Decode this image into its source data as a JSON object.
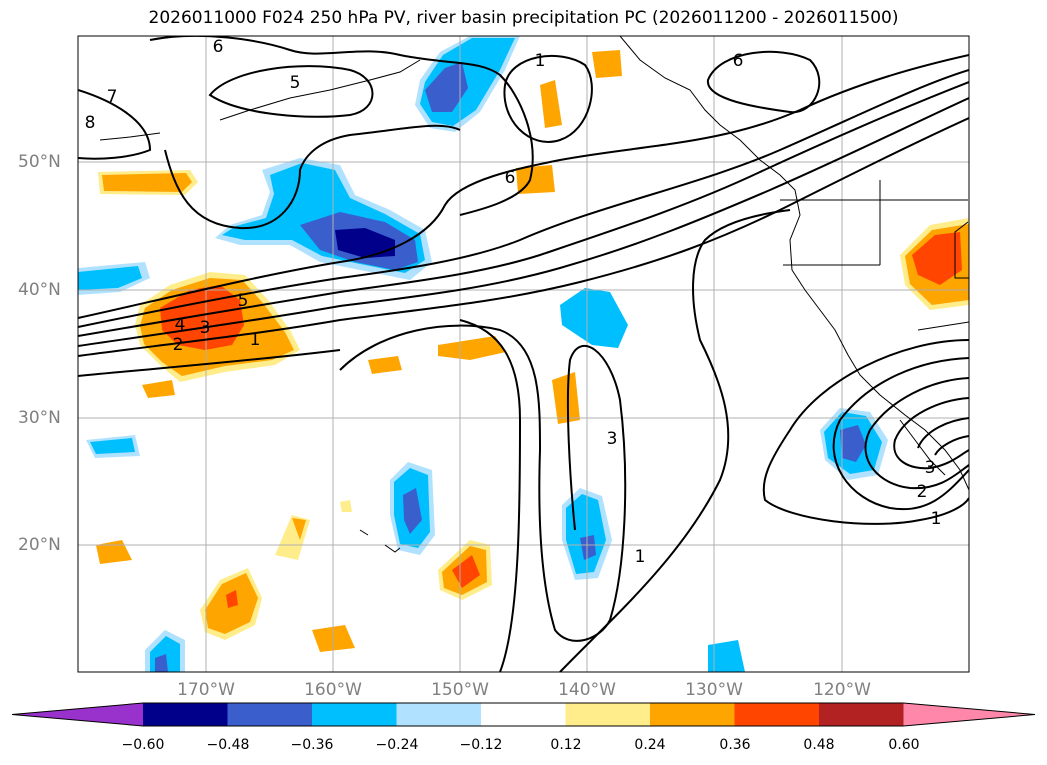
{
  "title": "2026011000 F024 250 hPa PV, river basin precipitation PC (2026011200 - 2026011500)",
  "lat_labels": [
    "50°N",
    "40°N",
    "30°N",
    "20°N"
  ],
  "lon_labels": [
    "170°W",
    "160°W",
    "150°W",
    "140°W",
    "130°W",
    "120°W"
  ],
  "colorbar": {
    "colors": [
      "#9932cc",
      "#00008b",
      "#3a5fcd",
      "#00bfff",
      "#b0e2ff",
      "#ffffff",
      "#ffec8b",
      "#ffa500",
      "#ff4500",
      "#b22222",
      "#ff88aa"
    ],
    "tick_labels": [
      "−0.60",
      "−0.48",
      "−0.36",
      "−0.24",
      "−0.12",
      "0.12",
      "0.24",
      "0.36",
      "0.48",
      "0.60"
    ]
  },
  "contour_labels": [
    "6",
    "5",
    "7",
    "8",
    "1",
    "6",
    "6",
    "5",
    "4",
    "3",
    "2",
    "1",
    "3",
    "1",
    "3",
    "2",
    "1"
  ]
}
